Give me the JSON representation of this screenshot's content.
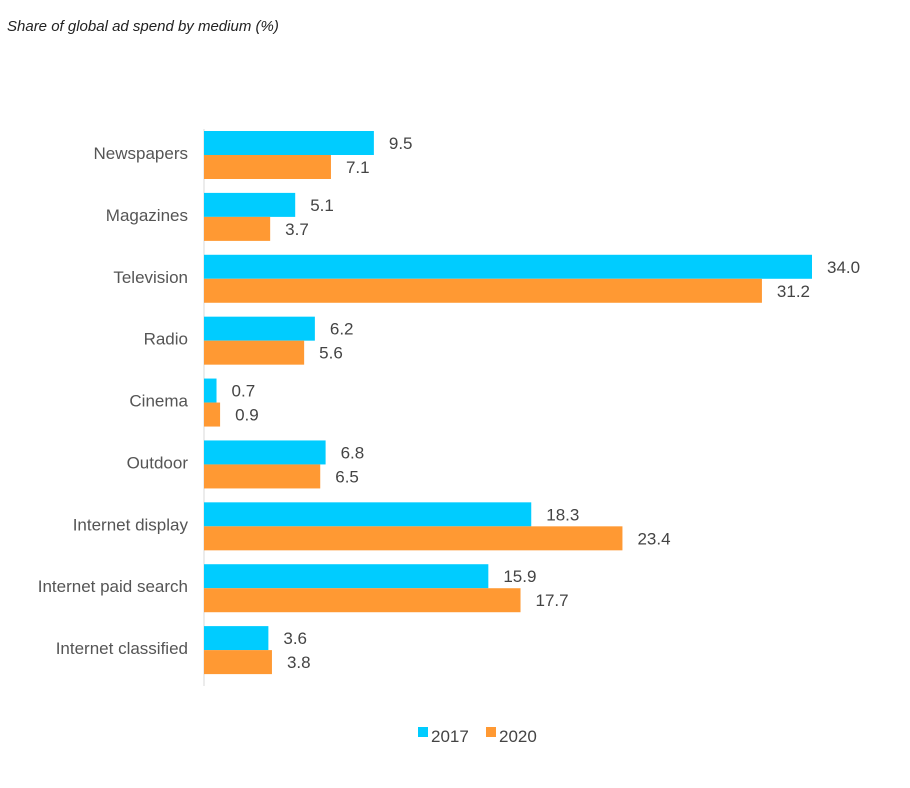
{
  "header": {
    "title": "Share of global ad spend by medium (%)"
  },
  "chart_data": {
    "type": "bar",
    "orientation": "horizontal",
    "title": "Share of global ad spend by medium (%)",
    "xlabel": "",
    "ylabel": "",
    "categories": [
      "Newspapers",
      "Magazines",
      "Television",
      "Radio",
      "Cinema",
      "Outdoor",
      "Internet display",
      "Internet paid search",
      "Internet classified"
    ],
    "series": [
      {
        "name": "2017",
        "color": "#00CCFF",
        "values": [
          9.5,
          5.1,
          34.0,
          6.2,
          0.7,
          6.8,
          18.3,
          15.9,
          3.6
        ]
      },
      {
        "name": "2020",
        "color": "#FF9933",
        "values": [
          7.1,
          3.7,
          31.2,
          5.6,
          0.9,
          6.5,
          23.4,
          17.7,
          3.8
        ]
      }
    ],
    "xlim": [
      0,
      34
    ],
    "grid": false,
    "legend": "bottom-center"
  }
}
